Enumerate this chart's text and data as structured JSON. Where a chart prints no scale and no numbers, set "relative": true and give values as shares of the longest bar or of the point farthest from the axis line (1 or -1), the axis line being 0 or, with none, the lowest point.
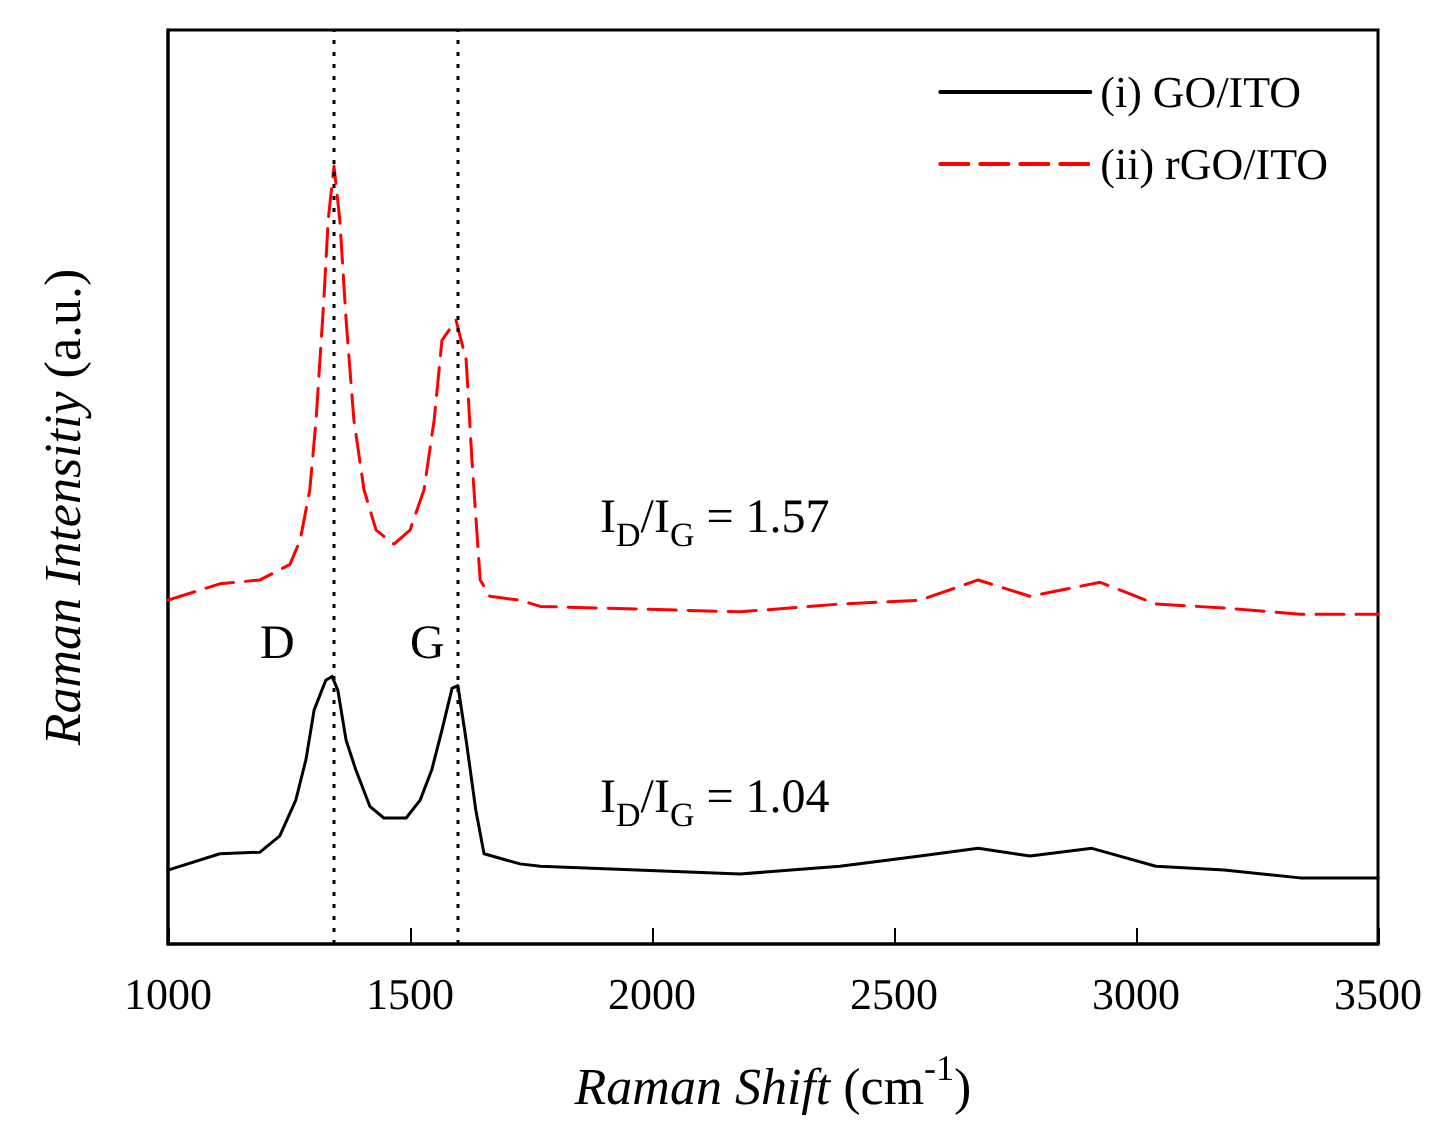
{
  "chart_data": {
    "type": "line",
    "relative": true,
    "xlabel": "Raman Shift (cm$^{-1}$)",
    "ylabel": "Raman Intensitiy (a.u.)",
    "xlim": [
      1000,
      3500
    ],
    "xticks": [
      1000,
      1500,
      2000,
      2500,
      3000,
      3500
    ],
    "tick_labels": "x",
    "grid": false,
    "legend": "top right",
    "marker": "none",
    "series": [
      {
        "name": "(i) GO/ITO",
        "color": "#000000",
        "line_style": "solid",
        "x": [
          1000,
          1107,
          1190,
          1231,
          1264,
          1285,
          1302,
          1326,
          1339,
          1351,
          1368,
          1388,
          1417,
          1446,
          1492,
          1521,
          1545,
          1566,
          1587,
          1599,
          1616,
          1636,
          1653,
          1727,
          1769,
          2182,
          2388,
          2554,
          2674,
          2781,
          2909,
          3041,
          3182,
          3339,
          3500
        ],
        "values": [
          0.095,
          0.116,
          0.118,
          0.139,
          0.185,
          0.237,
          0.301,
          0.339,
          0.344,
          0.326,
          0.262,
          0.224,
          0.177,
          0.162,
          0.162,
          0.185,
          0.224,
          0.275,
          0.329,
          0.332,
          0.262,
          0.172,
          0.116,
          0.103,
          0.1,
          0.09,
          0.1,
          0.113,
          0.123,
          0.113,
          0.123,
          0.1,
          0.095,
          0.085,
          0.085
        ]
      },
      {
        "name": "(ii) rGO/ITO",
        "color": "#ff0000",
        "line_style": "dashed",
        "x": [
          1000,
          1107,
          1190,
          1252,
          1273,
          1293,
          1306,
          1322,
          1331,
          1343,
          1355,
          1368,
          1384,
          1405,
          1430,
          1467,
          1500,
          1529,
          1550,
          1566,
          1595,
          1616,
          1628,
          1645,
          1665,
          1727,
          1769,
          2182,
          2388,
          2554,
          2674,
          2781,
          2926,
          3041,
          3182,
          3339,
          3500
        ],
        "values": [
          0.442,
          0.463,
          0.468,
          0.488,
          0.519,
          0.584,
          0.674,
          0.828,
          0.931,
          1.0,
          0.931,
          0.802,
          0.674,
          0.584,
          0.532,
          0.514,
          0.532,
          0.584,
          0.674,
          0.776,
          0.802,
          0.751,
          0.622,
          0.468,
          0.447,
          0.442,
          0.434,
          0.427,
          0.437,
          0.442,
          0.468,
          0.447,
          0.465,
          0.437,
          0.432,
          0.424,
          0.424
        ]
      }
    ],
    "ref_lines": [
      {
        "axis": "x",
        "value": 1340,
        "label": null,
        "color": "#000000",
        "line_style": "dotted"
      },
      {
        "axis": "x",
        "value": 1600,
        "label": null,
        "color": "#000000",
        "line_style": "dotted"
      }
    ],
    "annotations": [
      "D",
      "G",
      "I$_{D}$/I$_{G}$ = 1.57",
      "I$_{D}$/I$_{G}$ = 1.04"
    ]
  }
}
